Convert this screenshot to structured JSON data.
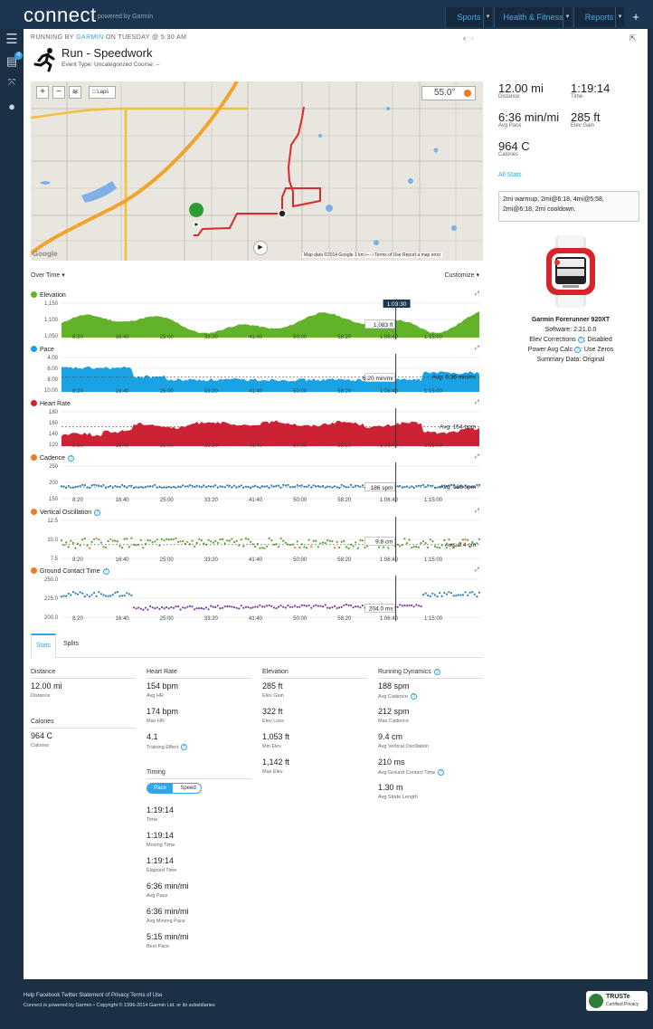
{
  "brand": {
    "logo": "connect",
    "sub": "powered by Garmin"
  },
  "topnav": [
    "Sports",
    "Health & Fitness",
    "Reports"
  ],
  "rail": {
    "badge": "4"
  },
  "activity": {
    "kicker_prefix": "RUNNING BY",
    "kicker_brand": "GARMIN",
    "kicker_suffix": "ON TUESDAY @ 5:30 AM",
    "title": "Run - Speedwork",
    "meta": "Event Type: Uncategorized   Course: --"
  },
  "map": {
    "laps": "Laps",
    "temp": "55.0°",
    "attribution": "Map data ©2014 Google   1 km ⊢⊣   Terms of Use   Report a map error",
    "google": "Google"
  },
  "controls": {
    "over_time": "Over Time ▾",
    "customize": "Customize ▾"
  },
  "summary": {
    "distance": {
      "value": "12.00 mi",
      "label": "Distance"
    },
    "time": {
      "value": "1:19:14",
      "label": "Time"
    },
    "avg_pace": {
      "value": "6:36 min/mi",
      "label": "Avg Pace"
    },
    "elev_gain": {
      "value": "285 ft",
      "label": "Elev Gain"
    },
    "calories": {
      "value": "964 C",
      "label": "Calories"
    },
    "all_stats": "All Stats",
    "notes": "2mi warmup, 2mi@6:18, 4mi@5:58, 2mi@6:18, 2mi cooldown."
  },
  "device": {
    "name": "Garmin Forerunner 920XT",
    "software": "Software: 2.21.0.0",
    "elev_corr": "Elev Corrections",
    "elev_corr_v": ": Disabled",
    "pwr": "Power Avg Calc",
    "pwr_v": ": Use Zeros",
    "summary": "Summary Data: Original"
  },
  "x_ticks": [
    "8:20",
    "16:40",
    "25:00",
    "33:20",
    "41:40",
    "50:00",
    "58:20",
    "1:06:40",
    "1:15:00"
  ],
  "charts": [
    {
      "key": "elev",
      "title": "Elevation",
      "color": "#63b32a",
      "dot": "#63b32a",
      "y_ticks": [
        "1,150",
        "1,100",
        "1,050"
      ],
      "marker": "1,083 ft",
      "cursor": "1:03:30"
    },
    {
      "key": "pace",
      "title": "Pace",
      "color": "#19a3e4",
      "dot": "#19a3e4",
      "y_ticks": [
        "4.00",
        "6.00",
        "8.00",
        "10.00"
      ],
      "marker": "6:20 min/mi",
      "avg": "Avg: 6:36 min/mi"
    },
    {
      "key": "hr",
      "title": "Heart Rate",
      "color": "#cc2233",
      "dot": "#cc2233",
      "y_ticks": [
        "180",
        "160",
        "140",
        "120"
      ],
      "avg": "Avg: 154 bpm"
    },
    {
      "key": "cad",
      "title": "Cadence",
      "color": "#2c7fb8",
      "dot": "#ee7a24",
      "help": true,
      "y_ticks": [
        "250",
        "200",
        "150"
      ],
      "marker": "186 spm",
      "avg": "Avg: 188 spm"
    },
    {
      "key": "vo",
      "title": "Vertical Oscillation",
      "color": "#5aa032",
      "dot": "#ee7a24",
      "help": true,
      "y_ticks": [
        "12.5",
        "10.0",
        "7.5"
      ],
      "marker": "9.8 cm",
      "avg": "Avg: 9.4 cm"
    },
    {
      "key": "gct",
      "title": "Ground Contact Time",
      "color": "#2c7fb8",
      "dot": "#ee7a24",
      "help": true,
      "y_ticks": [
        "250.0",
        "225.0",
        "200.0"
      ],
      "marker": "204.0 ms"
    }
  ],
  "chart_data": [
    {
      "type": "area",
      "title": "Elevation",
      "ylim": [
        1040,
        1160
      ],
      "cursor_x": "1:03:30",
      "marker": 1083
    },
    {
      "type": "area",
      "title": "Pace",
      "ylim": [
        4,
        10
      ],
      "avg": 6.6,
      "marker": 6.33
    },
    {
      "type": "area",
      "title": "Heart Rate",
      "ylim": [
        120,
        180
      ],
      "avg": 154
    },
    {
      "type": "scatter",
      "title": "Cadence",
      "ylim": [
        150,
        250
      ],
      "avg": 188,
      "marker": 186
    },
    {
      "type": "scatter",
      "title": "Vertical Oscillation",
      "ylim": [
        7.5,
        12.5
      ],
      "avg": 9.4,
      "marker": 9.8
    },
    {
      "type": "scatter",
      "title": "Ground Contact Time",
      "ylim": [
        190,
        250
      ],
      "marker": 204.0
    }
  ],
  "tabs": {
    "stats": "Stats",
    "splits": "Splits"
  },
  "stats": {
    "distance": {
      "h": "Distance",
      "items": [
        [
          "12.00 mi",
          "Distance"
        ]
      ]
    },
    "calories": {
      "h": "Calories",
      "items": [
        [
          "964 C",
          "Calories"
        ]
      ]
    },
    "heart": {
      "h": "Heart Rate",
      "items": [
        [
          "154 bpm",
          "Avg HR"
        ],
        [
          "174 bpm",
          "Max HR"
        ],
        [
          "4.1",
          "Training Effect"
        ]
      ]
    },
    "elev": {
      "h": "Elevation",
      "items": [
        [
          "285 ft",
          "Elev Gain"
        ],
        [
          "322 ft",
          "Elev Loss"
        ],
        [
          "1,053 ft",
          "Min Elev"
        ],
        [
          "1,142 ft",
          "Max Elev"
        ]
      ]
    },
    "dyn": {
      "h": "Running Dynamics",
      "items": [
        [
          "188 spm",
          "Avg Cadence"
        ],
        [
          "212 spm",
          "Max Cadence"
        ],
        [
          "9.4 cm",
          "Avg Vertical Oscillation"
        ],
        [
          "210 ms",
          "Avg Ground Contact Time"
        ],
        [
          "1.30 m",
          "Avg Stride Length"
        ]
      ]
    },
    "timing": {
      "h": "Timing",
      "toggle": [
        "Pace",
        "Speed"
      ],
      "items": [
        [
          "1:19:14",
          "Time"
        ],
        [
          "1:19:14",
          "Moving Time"
        ],
        [
          "1:19:14",
          "Elapsed Time"
        ],
        [
          "6:36 min/mi",
          "Avg Pace"
        ],
        [
          "6:36 min/mi",
          "Avg Moving Pace"
        ],
        [
          "5:15 min/mi",
          "Best Pace"
        ]
      ]
    }
  },
  "footer": {
    "links": "Help  Facebook  Twitter  Statement of Privacy  Terms of Use",
    "copy": "Connect is powered by Garmin • Copyright © 1996-2014 Garmin Ltd. or its subsidiaries",
    "truste": "TRUSTe",
    "truste_sub": "Certified Privacy"
  }
}
